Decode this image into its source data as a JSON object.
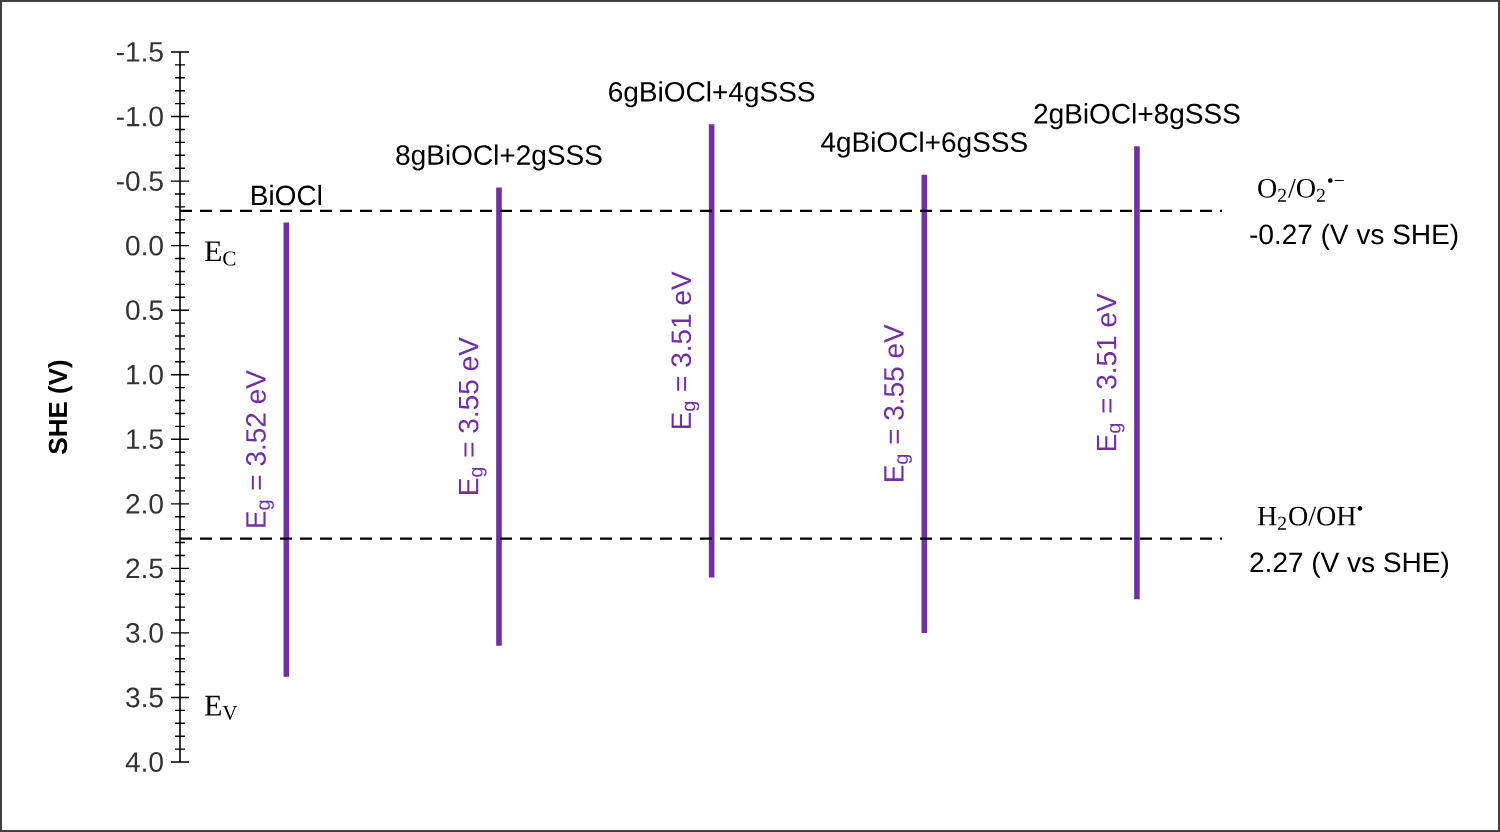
{
  "chart_data": {
    "type": "bar",
    "ylabel": "SHE (V)",
    "categories": [
      "BiOCl",
      "8gBiOCl+2gSSS",
      "6gBiOCl+4gSSS",
      "4gBiOCl+6gSSS",
      "2gBiOCl+8gSSS"
    ],
    "base": [
      -0.18,
      -0.45,
      -0.94,
      -0.55,
      -0.77
    ],
    "values": [
      3.52,
      3.55,
      3.51,
      3.55,
      3.51
    ],
    "value_labels": [
      "E$_{g}$ = 3.52 eV",
      "E$_{g}$ = 3.55 eV",
      "E$_{g}$ = 3.51 eV",
      "E$_{g}$ = 3.55 eV",
      "E$_{g}$ = 3.51 eV"
    ],
    "color": "#7030a0",
    "ylim": [
      4.0,
      -1.5
    ],
    "yticks": [
      -1.5,
      {
        "value": -1,
        "label": "-1.0"
      },
      -0.5,
      {
        "value": 0,
        "label": "0.0"
      },
      0.5,
      {
        "value": 1,
        "label": "1.0"
      },
      1.5,
      {
        "value": 2,
        "label": "2.0"
      },
      2.5,
      {
        "value": 3,
        "label": "3.0"
      },
      3.5,
      {
        "value": 4,
        "label": "4.0"
      }
    ],
    "ref_lines": [
      {
        "axis": "y",
        "value": -0.27,
        "label": "O$_{2}$/O$_{2}$$^{•−}$",
        "color": "#000000",
        "line_style": "dashed"
      },
      {
        "axis": "y",
        "value": 2.27,
        "label": "H$_{2}$O/OH$^{•}$",
        "color": "#000000",
        "line_style": "dashed"
      }
    ],
    "annotations": [
      "-0.27 (V vs SHE)",
      "2.27 (V vs SHE)",
      "E$_{C}$",
      "E$_{V}$"
    ]
  }
}
